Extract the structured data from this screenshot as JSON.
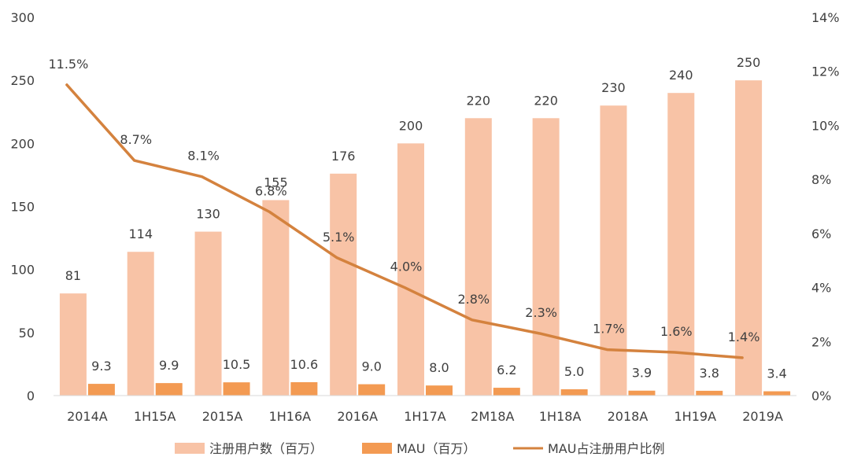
{
  "chart_data": {
    "type": "bar",
    "categories": [
      "2014A",
      "1H15A",
      "2015A",
      "1H16A",
      "2016A",
      "1H17A",
      "2M18A",
      "1H18A",
      "2018A",
      "1H19A",
      "2019A"
    ],
    "series": [
      {
        "name": "注册用户数（百万）",
        "type": "bar",
        "axis": "left",
        "color": "#F8C3A6",
        "values": [
          81,
          114,
          130,
          155,
          176,
          200,
          220,
          220,
          230,
          240,
          250
        ],
        "labels": [
          "81",
          "114",
          "130",
          "155",
          "176",
          "200",
          "220",
          "220",
          "230",
          "240",
          "250"
        ]
      },
      {
        "name": "MAU（百万）",
        "type": "bar",
        "axis": "left",
        "color": "#F39A52",
        "values": [
          9.3,
          9.9,
          10.5,
          10.6,
          9.0,
          8.0,
          6.2,
          5.0,
          3.9,
          3.8,
          3.4
        ],
        "labels": [
          "9.3",
          "9.9",
          "10.5",
          "10.6",
          "9.0",
          "8.0",
          "6.2",
          "5.0",
          "3.9",
          "3.8",
          "3.4"
        ]
      },
      {
        "name": "MAU占注册用户比例",
        "type": "line",
        "axis": "right",
        "color": "#D4823E",
        "values": [
          11.5,
          8.7,
          8.1,
          6.8,
          5.1,
          4.0,
          2.8,
          2.3,
          1.7,
          1.6,
          1.4
        ],
        "labels": [
          "11.5%",
          "8.7%",
          "8.1%",
          "6.8%",
          "5.1%",
          "4.0%",
          "2.8%",
          "2.3%",
          "1.7%",
          "1.6%",
          "1.4%"
        ]
      }
    ],
    "left_axis": {
      "min": 0,
      "max": 300,
      "step": 50,
      "ticks": [
        "0",
        "50",
        "100",
        "150",
        "200",
        "250",
        "300"
      ]
    },
    "right_axis": {
      "min": 0,
      "max": 14,
      "step": 2,
      "ticks": [
        "0%",
        "2%",
        "4%",
        "6%",
        "8%",
        "10%",
        "12%",
        "14%"
      ]
    },
    "grid": false,
    "legend": "bottom"
  }
}
